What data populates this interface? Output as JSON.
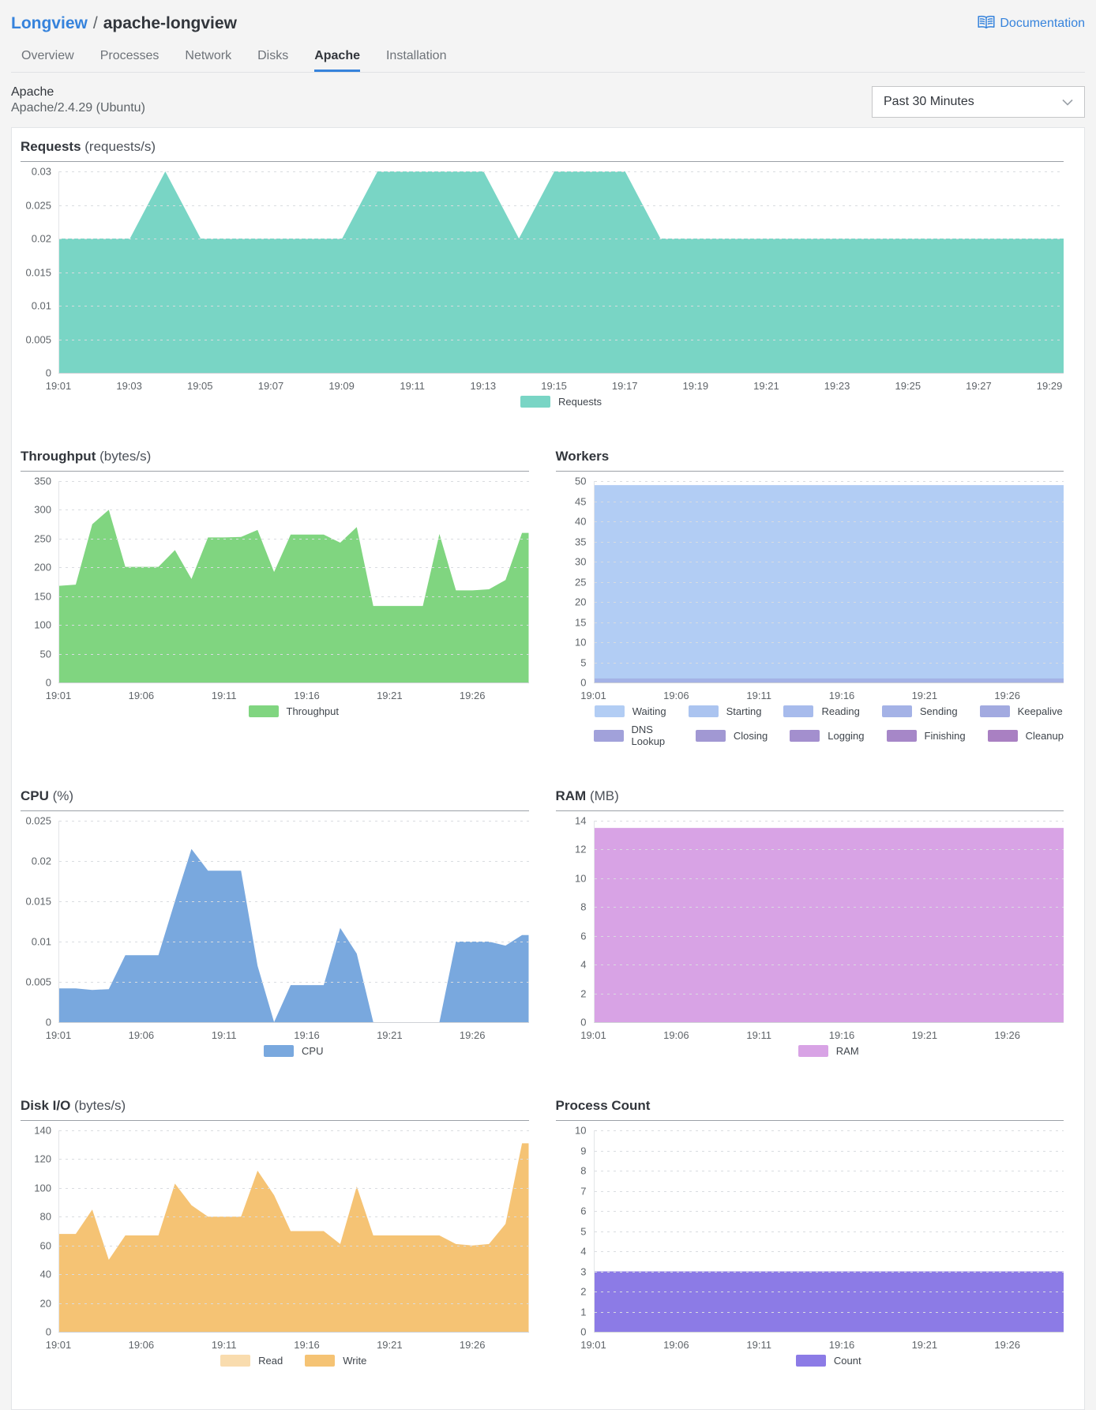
{
  "header": {
    "breadcrumb_parent": "Longview",
    "breadcrumb_separator": "/",
    "breadcrumb_current": "apache-longview",
    "documentation_label": "Documentation"
  },
  "tabs": [
    {
      "label": "Overview",
      "active": false
    },
    {
      "label": "Processes",
      "active": false
    },
    {
      "label": "Network",
      "active": false
    },
    {
      "label": "Disks",
      "active": false
    },
    {
      "label": "Apache",
      "active": true
    },
    {
      "label": "Installation",
      "active": false
    }
  ],
  "subheader": {
    "title": "Apache",
    "version": "Apache/2.4.29 (Ubuntu)",
    "time_range": "Past 30 Minutes"
  },
  "colors": {
    "accent_blue": "#3683dc",
    "page_bg": "#f4f4f4",
    "panel_bg": "#ffffff"
  },
  "chart_data": [
    {
      "type": "area",
      "title": "Requests",
      "unit": "(requests/s)",
      "ylim": [
        0,
        0.03
      ],
      "grid": "dotted-horizontal",
      "legend_position": "bottom-center",
      "yticks": [
        {
          "v": 0,
          "l": "0"
        },
        {
          "v": 0.005,
          "l": "0.005"
        },
        {
          "v": 0.01,
          "l": "0.01"
        },
        {
          "v": 0.015,
          "l": "0.015"
        },
        {
          "v": 0.02,
          "l": "0.02"
        },
        {
          "v": 0.025,
          "l": "0.025"
        },
        {
          "v": 0.03,
          "l": "0.03"
        }
      ],
      "xmin": 1,
      "xmax": 29.4,
      "xticks": [
        {
          "m": 1,
          "l": "19:01"
        },
        {
          "m": 3,
          "l": "19:03"
        },
        {
          "m": 5,
          "l": "19:05"
        },
        {
          "m": 7,
          "l": "19:07"
        },
        {
          "m": 9,
          "l": "19:09"
        },
        {
          "m": 11,
          "l": "19:11"
        },
        {
          "m": 13,
          "l": "19:13"
        },
        {
          "m": 15,
          "l": "19:15"
        },
        {
          "m": 17,
          "l": "19:17"
        },
        {
          "m": 19,
          "l": "19:19"
        },
        {
          "m": 21,
          "l": "19:21"
        },
        {
          "m": 23,
          "l": "19:23"
        },
        {
          "m": 25,
          "l": "19:25"
        },
        {
          "m": 27,
          "l": "19:27"
        },
        {
          "m": 29,
          "l": "19:29"
        }
      ],
      "series": [
        {
          "name": "Requests",
          "color": "#79d5c5",
          "start_min": 1,
          "step_min": 1,
          "values": [
            0.02,
            0.02,
            0.02,
            0.03,
            0.02,
            0.02,
            0.02,
            0.02,
            0.02,
            0.03,
            0.03,
            0.03,
            0.03,
            0.02,
            0.03,
            0.03,
            0.03,
            0.02,
            0.02,
            0.02,
            0.02,
            0.02,
            0.02,
            0.02,
            0.02,
            0.02,
            0.02,
            0.02,
            0.02
          ]
        }
      ],
      "legend_rows": [
        [
          {
            "label": "Requests",
            "color": "#79d5c5"
          }
        ]
      ]
    },
    {
      "type": "area",
      "title": "Throughput",
      "unit": "(bytes/s)",
      "ylim": [
        0,
        350
      ],
      "grid": "dotted-horizontal",
      "legend_position": "bottom-center",
      "yticks": [
        {
          "v": 0,
          "l": "0"
        },
        {
          "v": 50,
          "l": "50"
        },
        {
          "v": 100,
          "l": "100"
        },
        {
          "v": 150,
          "l": "150"
        },
        {
          "v": 200,
          "l": "200"
        },
        {
          "v": 250,
          "l": "250"
        },
        {
          "v": 300,
          "l": "300"
        },
        {
          "v": 350,
          "l": "350"
        }
      ],
      "xmin": 1,
      "xmax": 29.4,
      "xticks": [
        {
          "m": 1,
          "l": "19:01"
        },
        {
          "m": 6,
          "l": "19:06"
        },
        {
          "m": 11,
          "l": "19:11"
        },
        {
          "m": 16,
          "l": "19:16"
        },
        {
          "m": 21,
          "l": "19:21"
        },
        {
          "m": 26,
          "l": "19:26"
        }
      ],
      "series": [
        {
          "name": "Throughput",
          "color": "#80d580",
          "start_min": 1,
          "step_min": 1,
          "values": [
            168,
            170,
            275,
            300,
            201,
            201,
            201,
            230,
            180,
            252,
            252,
            253,
            265,
            192,
            257,
            257,
            257,
            243,
            270,
            133,
            133,
            133,
            133,
            258,
            160,
            160,
            162,
            178,
            260
          ]
        }
      ],
      "legend_rows": [
        [
          {
            "label": "Throughput",
            "color": "#80d580"
          }
        ]
      ]
    },
    {
      "type": "area",
      "title": "Workers",
      "unit": "",
      "ylim": [
        0,
        50
      ],
      "grid": "dotted-horizontal",
      "legend_position": "bottom-center",
      "yticks": [
        {
          "v": 0,
          "l": "0"
        },
        {
          "v": 5,
          "l": "5"
        },
        {
          "v": 10,
          "l": "10"
        },
        {
          "v": 15,
          "l": "15"
        },
        {
          "v": 20,
          "l": "20"
        },
        {
          "v": 25,
          "l": "25"
        },
        {
          "v": 30,
          "l": "30"
        },
        {
          "v": 35,
          "l": "35"
        },
        {
          "v": 40,
          "l": "40"
        },
        {
          "v": 45,
          "l": "45"
        },
        {
          "v": 50,
          "l": "50"
        }
      ],
      "xmin": 1,
      "xmax": 29.4,
      "xticks": [
        {
          "m": 1,
          "l": "19:01"
        },
        {
          "m": 6,
          "l": "19:06"
        },
        {
          "m": 11,
          "l": "19:11"
        },
        {
          "m": 16,
          "l": "19:16"
        },
        {
          "m": 21,
          "l": "19:21"
        },
        {
          "m": 26,
          "l": "19:26"
        }
      ],
      "series": [
        {
          "name": "Waiting",
          "color": "#b2cdf4",
          "value": 49
        },
        {
          "name": "Sending",
          "color": "#a4b2e6",
          "value": 1
        }
      ],
      "legend_rows": [
        [
          {
            "label": "Waiting",
            "color": "#b2cdf4"
          },
          {
            "label": "Starting",
            "color": "#abc4f0"
          },
          {
            "label": "Reading",
            "color": "#a7bbec"
          },
          {
            "label": "Sending",
            "color": "#a4b2e6"
          },
          {
            "label": "Keepalive",
            "color": "#a2aae0"
          }
        ],
        [
          {
            "label": "DNS Lookup",
            "color": "#a1a1da"
          },
          {
            "label": "Closing",
            "color": "#a198d3"
          },
          {
            "label": "Logging",
            "color": "#a38fce"
          },
          {
            "label": "Finishing",
            "color": "#a687c8"
          },
          {
            "label": "Cleanup",
            "color": "#a980c2"
          }
        ]
      ]
    },
    {
      "type": "area",
      "title": "CPU",
      "unit": "(%)",
      "ylim": [
        0,
        0.025
      ],
      "grid": "dotted-horizontal",
      "legend_position": "bottom-center",
      "yticks": [
        {
          "v": 0,
          "l": "0"
        },
        {
          "v": 0.005,
          "l": "0.005"
        },
        {
          "v": 0.01,
          "l": "0.01"
        },
        {
          "v": 0.015,
          "l": "0.015"
        },
        {
          "v": 0.02,
          "l": "0.02"
        },
        {
          "v": 0.025,
          "l": "0.025"
        }
      ],
      "xmin": 1,
      "xmax": 29.4,
      "xticks": [
        {
          "m": 1,
          "l": "19:01"
        },
        {
          "m": 6,
          "l": "19:06"
        },
        {
          "m": 11,
          "l": "19:11"
        },
        {
          "m": 16,
          "l": "19:16"
        },
        {
          "m": 21,
          "l": "19:21"
        },
        {
          "m": 26,
          "l": "19:26"
        }
      ],
      "series": [
        {
          "name": "CPU",
          "color": "#79a8de",
          "start_min": 1,
          "step_min": 1,
          "values": [
            0.0042,
            0.0042,
            0.004,
            0.0041,
            0.0083,
            0.0083,
            0.0083,
            0.015,
            0.0215,
            0.0188,
            0.0188,
            0.0188,
            0.007,
            0,
            0.0046,
            0.0046,
            0.0046,
            0.0117,
            0.0085,
            0,
            0,
            0,
            0,
            0,
            0.01,
            0.01,
            0.01,
            0.0095,
            0.0108
          ]
        }
      ],
      "legend_rows": [
        [
          {
            "label": "CPU",
            "color": "#79a8de"
          }
        ]
      ]
    },
    {
      "type": "area",
      "title": "RAM",
      "unit": "(MB)",
      "ylim": [
        0,
        14
      ],
      "grid": "dotted-horizontal",
      "legend_position": "bottom-center",
      "yticks": [
        {
          "v": 0,
          "l": "0"
        },
        {
          "v": 2,
          "l": "2"
        },
        {
          "v": 4,
          "l": "4"
        },
        {
          "v": 6,
          "l": "6"
        },
        {
          "v": 8,
          "l": "8"
        },
        {
          "v": 10,
          "l": "10"
        },
        {
          "v": 12,
          "l": "12"
        },
        {
          "v": 14,
          "l": "14"
        }
      ],
      "xmin": 1,
      "xmax": 29.4,
      "xticks": [
        {
          "m": 1,
          "l": "19:01"
        },
        {
          "m": 6,
          "l": "19:06"
        },
        {
          "m": 11,
          "l": "19:11"
        },
        {
          "m": 16,
          "l": "19:16"
        },
        {
          "m": 21,
          "l": "19:21"
        },
        {
          "m": 26,
          "l": "19:26"
        }
      ],
      "series": [
        {
          "name": "RAM",
          "color": "#d8a3e5",
          "value": 13.5
        }
      ],
      "legend_rows": [
        [
          {
            "label": "RAM",
            "color": "#d8a3e5"
          }
        ]
      ]
    },
    {
      "type": "area",
      "title": "Disk I/O",
      "unit": "(bytes/s)",
      "ylim": [
        0,
        140
      ],
      "grid": "dotted-horizontal",
      "legend_position": "bottom-center",
      "yticks": [
        {
          "v": 0,
          "l": "0"
        },
        {
          "v": 20,
          "l": "20"
        },
        {
          "v": 40,
          "l": "40"
        },
        {
          "v": 60,
          "l": "60"
        },
        {
          "v": 80,
          "l": "80"
        },
        {
          "v": 100,
          "l": "100"
        },
        {
          "v": 120,
          "l": "120"
        },
        {
          "v": 140,
          "l": "140"
        }
      ],
      "xmin": 1,
      "xmax": 29.4,
      "xticks": [
        {
          "m": 1,
          "l": "19:01"
        },
        {
          "m": 6,
          "l": "19:06"
        },
        {
          "m": 11,
          "l": "19:11"
        },
        {
          "m": 16,
          "l": "19:16"
        },
        {
          "m": 21,
          "l": "19:21"
        },
        {
          "m": 26,
          "l": "19:26"
        }
      ],
      "series": [
        {
          "name": "Write",
          "color": "#f5c374",
          "start_min": 1,
          "step_min": 1,
          "values": [
            68,
            68,
            85,
            50,
            67,
            67,
            67,
            103,
            88,
            80,
            80,
            80,
            112,
            95,
            70,
            70,
            70,
            61,
            101,
            67,
            67,
            67,
            67,
            67,
            61,
            60,
            61,
            75,
            131
          ]
        }
      ],
      "legend_rows": [
        [
          {
            "label": "Read",
            "color": "#f9dcae"
          },
          {
            "label": "Write",
            "color": "#f5c374"
          }
        ]
      ]
    },
    {
      "type": "area",
      "title": "Process Count",
      "unit": "",
      "ylim": [
        0,
        10
      ],
      "grid": "dotted-horizontal",
      "legend_position": "bottom-center",
      "yticks": [
        {
          "v": 0,
          "l": "0"
        },
        {
          "v": 1,
          "l": "1"
        },
        {
          "v": 2,
          "l": "2"
        },
        {
          "v": 3,
          "l": "3"
        },
        {
          "v": 4,
          "l": "4"
        },
        {
          "v": 5,
          "l": "5"
        },
        {
          "v": 6,
          "l": "6"
        },
        {
          "v": 7,
          "l": "7"
        },
        {
          "v": 8,
          "l": "8"
        },
        {
          "v": 9,
          "l": "9"
        },
        {
          "v": 10,
          "l": "10"
        }
      ],
      "xmin": 1,
      "xmax": 29.4,
      "xticks": [
        {
          "m": 1,
          "l": "19:01"
        },
        {
          "m": 6,
          "l": "19:06"
        },
        {
          "m": 11,
          "l": "19:11"
        },
        {
          "m": 16,
          "l": "19:16"
        },
        {
          "m": 21,
          "l": "19:21"
        },
        {
          "m": 26,
          "l": "19:26"
        }
      ],
      "series": [
        {
          "name": "Count",
          "color": "#8c7be6",
          "value": 3
        }
      ],
      "legend_rows": [
        [
          {
            "label": "Count",
            "color": "#8c7be6"
          }
        ]
      ]
    }
  ]
}
